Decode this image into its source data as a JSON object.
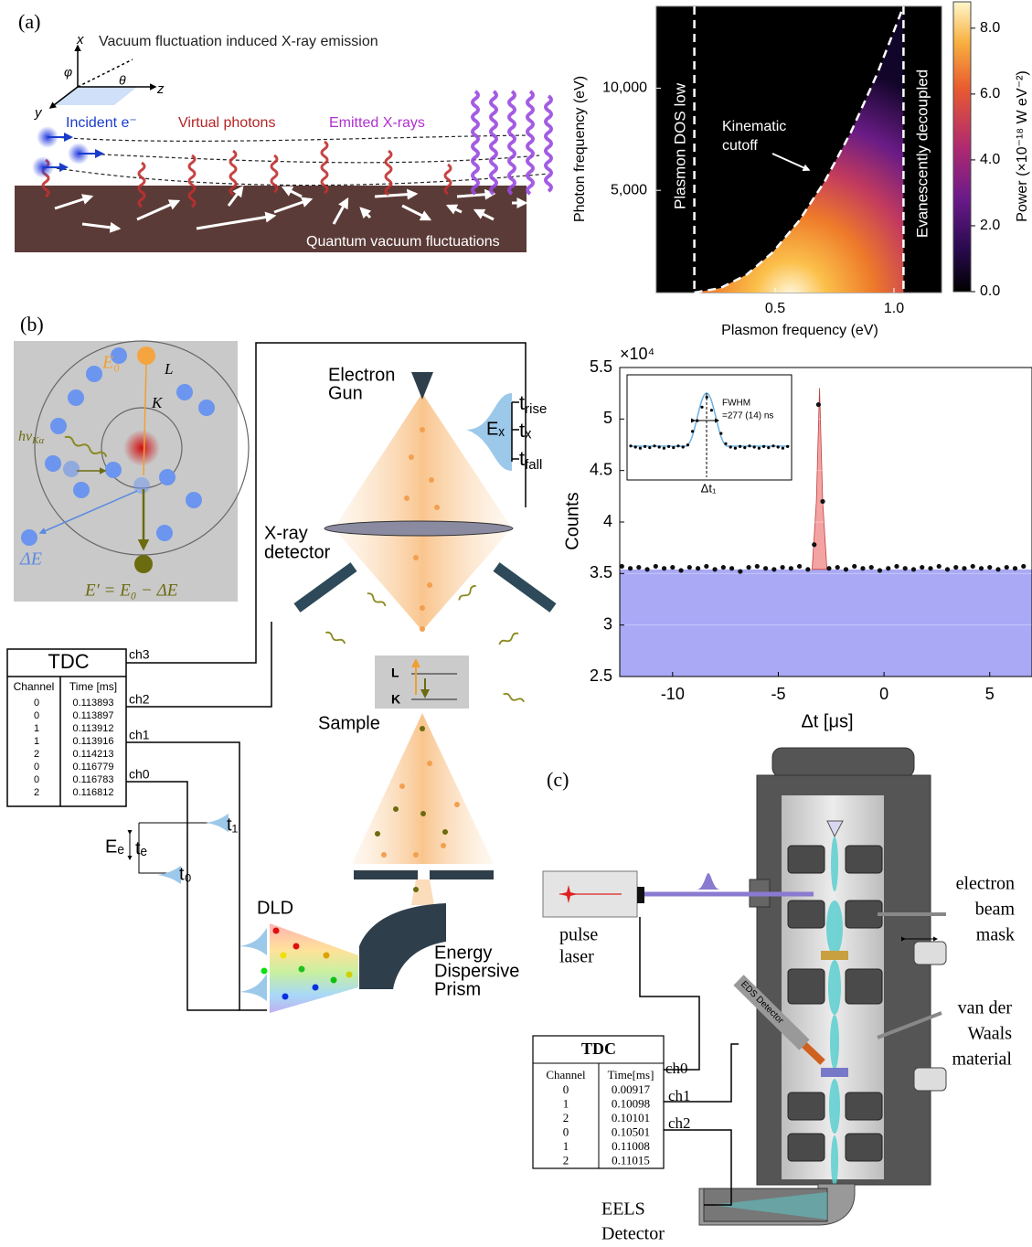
{
  "panels": {
    "a": "(a)",
    "b": "(b)",
    "c": "(c)"
  },
  "panel_a": {
    "title": "Vacuum fluctuation induced X-ray emission",
    "axes": {
      "x": "x",
      "y": "y",
      "z": "z",
      "phi": "φ",
      "theta": "θ"
    },
    "incident": "Incident e⁻",
    "virtual": "Virtual photons",
    "emitted": "Emitted X-rays",
    "vacuum": "Quantum vacuum fluctuations"
  },
  "chart_data": [
    {
      "type": "heatmap",
      "xlabel": "Plasmon frequency (eV)",
      "ylabel": "Photon frequency (eV)",
      "xlim": [
        0,
        1.2
      ],
      "ylim": [
        0,
        14000
      ],
      "xticks": [
        {
          "value": 0.5,
          "label": "0.5"
        },
        {
          "value": 1,
          "label": "1.0"
        }
      ],
      "yticks": [
        {
          "value": 5000,
          "label": "5,000"
        },
        {
          "value": 10000,
          "label": "10,000"
        }
      ],
      "colorbar_label": "Power (×10⁻¹⁸ W eV⁻²)",
      "clim": [
        0,
        8.8
      ],
      "cticks": [
        {
          "value": 0,
          "label": "0.0"
        },
        {
          "value": 2,
          "label": "2.0"
        },
        {
          "value": 4,
          "label": "4.0"
        },
        {
          "value": 6,
          "label": "6.0"
        },
        {
          "value": 8,
          "label": "8.0"
        }
      ],
      "dashed_lines_x": [
        0.16,
        1.04
      ],
      "cutoff": {
        "x": [
          0.16,
          0.27,
          0.38,
          0.49,
          0.6,
          0.71,
          0.82,
          0.93,
          1.04
        ],
        "values": [
          0,
          219,
          875,
          1969,
          3500,
          5469,
          7875,
          10719,
          14000
        ]
      },
      "annotations": {
        "left": "Plasmon DOS low",
        "cutoff": [
          "Kinematic",
          "cutoff"
        ],
        "right": "Evanescently decoupled"
      }
    },
    {
      "type": "scatter",
      "xlabel": "Δt [μs]",
      "ylabel": "Counts",
      "scale_label": "×10⁴",
      "xlim": [
        -12.5,
        7
      ],
      "ylim": [
        2.5,
        5.5
      ],
      "xticks": [
        -10,
        -5,
        0,
        5
      ],
      "yticks": [
        2.5,
        3,
        3.5,
        4,
        4.5,
        5,
        5.5
      ],
      "grid": true,
      "color": "#111111",
      "x": [
        -12.4,
        -12.0,
        -11.6,
        -11.2,
        -10.8,
        -10.4,
        -10.0,
        -9.6,
        -9.2,
        -8.8,
        -8.4,
        -8.0,
        -7.6,
        -7.2,
        -6.8,
        -6.4,
        -6.0,
        -5.6,
        -5.2,
        -4.8,
        -4.4,
        -4.0,
        -3.6,
        -3.3,
        -3.1,
        -2.9,
        -2.6,
        -2.2,
        -1.8,
        -1.4,
        -1.0,
        -0.6,
        -0.2,
        0.2,
        0.6,
        1.0,
        1.4,
        1.8,
        2.2,
        2.6,
        3.0,
        3.4,
        3.8,
        4.2,
        4.6,
        5.0,
        5.4,
        5.8,
        6.2,
        6.6
      ],
      "values": [
        3.57,
        3.55,
        3.56,
        3.54,
        3.57,
        3.55,
        3.56,
        3.53,
        3.56,
        3.55,
        3.57,
        3.54,
        3.56,
        3.55,
        3.52,
        3.56,
        3.57,
        3.55,
        3.54,
        3.56,
        3.55,
        3.57,
        3.54,
        3.78,
        5.14,
        4.2,
        3.55,
        3.56,
        3.54,
        3.57,
        3.55,
        3.56,
        3.53,
        3.55,
        3.57,
        3.55,
        3.54,
        3.56,
        3.55,
        3.57,
        3.54,
        3.56,
        3.55,
        3.57,
        3.55,
        3.56,
        3.54,
        3.56,
        3.55,
        3.57
      ],
      "fit": {
        "x": [
          -12.5,
          -3.4,
          -3.2,
          -3.05,
          -2.9,
          -2.7,
          7
        ],
        "values": [
          3.54,
          3.54,
          4.2,
          5.3,
          4.2,
          3.54,
          3.54
        ],
        "color": "#a9a9f5",
        "peak_color": "#f4a3a3"
      },
      "inset": {
        "annotation": [
          "FWHM",
          "=277 (14) ns"
        ],
        "marker_label": "Δt₁"
      }
    }
  ],
  "panel_b": {
    "atom": {
      "e0": "E₀",
      "l": "L",
      "k": "K",
      "photon": {
        "main": "hν",
        "sub": "Kα"
      },
      "delta": "ΔE",
      "result": "E′ = E₀ − ΔE"
    },
    "gun": [
      "Electron",
      "Gun"
    ],
    "xray_detector": [
      "X-ray",
      "detector"
    ],
    "ex": "Eₓ",
    "t_rise": {
      "main": "t",
      "sub": "rise"
    },
    "t_x": "tₓ",
    "t_fall": {
      "main": "t",
      "sub": "fall"
    },
    "sample_levels": [
      "L",
      "K"
    ],
    "sample": "Sample",
    "tdc": {
      "title": "TDC",
      "headers": [
        "Channel",
        "Time [ms]"
      ],
      "rows": [
        [
          0,
          0.113893
        ],
        [
          0,
          0.113897
        ],
        [
          1,
          0.113912
        ],
        [
          1,
          0.113916
        ],
        [
          2,
          0.114213
        ],
        [
          0,
          0.116779
        ],
        [
          0,
          0.116783
        ],
        [
          2,
          0.116812
        ]
      ]
    },
    "channels": [
      "ch3",
      "ch2",
      "ch1",
      "ch0"
    ],
    "t1": "t₁",
    "t0": "t₀",
    "ee": "Eₑ",
    "te": "tₑ",
    "dld": "DLD",
    "prism": [
      "Energy",
      "Dispersive",
      "Prism"
    ]
  },
  "panel_c": {
    "laser": [
      "pulse",
      "laser"
    ],
    "mask": [
      "electron",
      "beam",
      "mask"
    ],
    "vdw": [
      "van der",
      "Waals",
      "material"
    ],
    "eds": "EDS Detector",
    "tdc": {
      "title": "TDC",
      "headers": [
        "Channel",
        "Time[ms]"
      ],
      "rows": [
        [
          0,
          0.00917
        ],
        [
          1,
          0.10098
        ],
        [
          2,
          0.10101
        ],
        [
          0,
          0.10501
        ],
        [
          1,
          0.11008
        ],
        [
          2,
          0.11015
        ]
      ]
    },
    "channels": [
      "ch0",
      "ch1",
      "ch2"
    ],
    "eels": [
      "EELS",
      "Detector"
    ]
  }
}
